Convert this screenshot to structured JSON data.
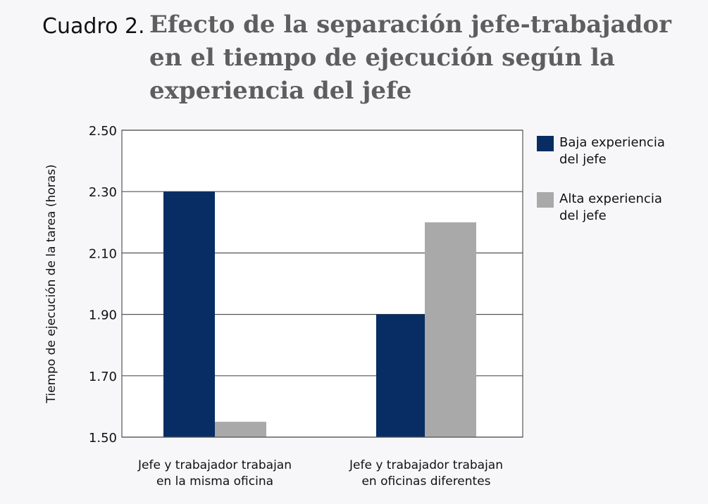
{
  "title_prefix": "Cuadro 2.",
  "title": "Efecto de la separación jefe-trabajador en el tiempo de ejecución según la experiencia del jefe",
  "chart_data": {
    "type": "bar",
    "title": "Efecto de la separación jefe-trabajador en el tiempo de ejecución según la experiencia del jefe",
    "xlabel": "",
    "ylabel": "Tiempo de ejecución de la tarea (horas)",
    "categories": [
      "Jefe y trabajador trabajan en la misma oficina",
      "Jefe y trabajador trabajan en oficinas diferentes"
    ],
    "category_lines": [
      [
        "Jefe y trabajador trabajan",
        "en la misma oficina"
      ],
      [
        "Jefe y trabajador trabajan",
        "en oficinas diferentes"
      ]
    ],
    "series": [
      {
        "name": "Baja experiencia del jefe",
        "name_lines": [
          "Baja experiencia",
          "del jefe"
        ],
        "values": [
          2.3,
          1.9
        ],
        "color": "#082d64"
      },
      {
        "name": "Alta experiencia del jefe",
        "name_lines": [
          "Alta experiencia",
          "del jefe"
        ],
        "values": [
          1.55,
          2.2
        ],
        "color": "#a9a9a9"
      }
    ],
    "ylim": [
      1.5,
      2.5
    ],
    "yticks": [
      "1.50",
      "1.70",
      "1.90",
      "2.10",
      "2.30",
      "2.50"
    ],
    "grid": true,
    "legend_position": "right"
  }
}
